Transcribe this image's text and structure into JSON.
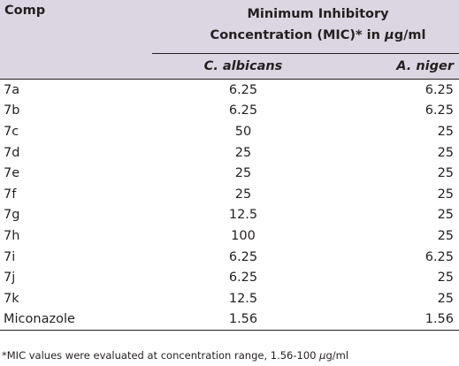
{
  "table": {
    "header": {
      "comp": "Comp",
      "mic_line1": "Minimum Inhibitory",
      "mic_line2_pre": "Concentration (MIC)* in ",
      "mic_line2_unit_mu": "μ",
      "mic_line2_unit_rest": "g/ml",
      "col_c_albicans": "C. albicans",
      "col_a_niger": "A. niger"
    },
    "rows": [
      {
        "comp": "7a",
        "c_albicans": "6.25",
        "a_niger": "6.25"
      },
      {
        "comp": "7b",
        "c_albicans": "6.25",
        "a_niger": "6.25"
      },
      {
        "comp": "7c",
        "c_albicans": "50",
        "a_niger": "25"
      },
      {
        "comp": "7d",
        "c_albicans": "25",
        "a_niger": "25"
      },
      {
        "comp": "7e",
        "c_albicans": "25",
        "a_niger": "25"
      },
      {
        "comp": "7f",
        "c_albicans": "25",
        "a_niger": "25"
      },
      {
        "comp": "7g",
        "c_albicans": "12.5",
        "a_niger": "25"
      },
      {
        "comp": "7h",
        "c_albicans": "100",
        "a_niger": "25"
      },
      {
        "comp": "7i",
        "c_albicans": "6.25",
        "a_niger": "6.25"
      },
      {
        "comp": "7j",
        "c_albicans": "6.25",
        "a_niger": "25"
      },
      {
        "comp": "7k",
        "c_albicans": "12.5",
        "a_niger": "25"
      },
      {
        "comp": "Miconazole",
        "c_albicans": "1.56",
        "a_niger": "1.56"
      }
    ]
  },
  "footnote": {
    "pre": "*MIC values were evaluated at concentration range, 1.56-100 ",
    "unit_mu": "μ",
    "unit_rest": "g/ml"
  },
  "colors": {
    "header_bg": "#dcd6e2",
    "text": "#231f20"
  }
}
